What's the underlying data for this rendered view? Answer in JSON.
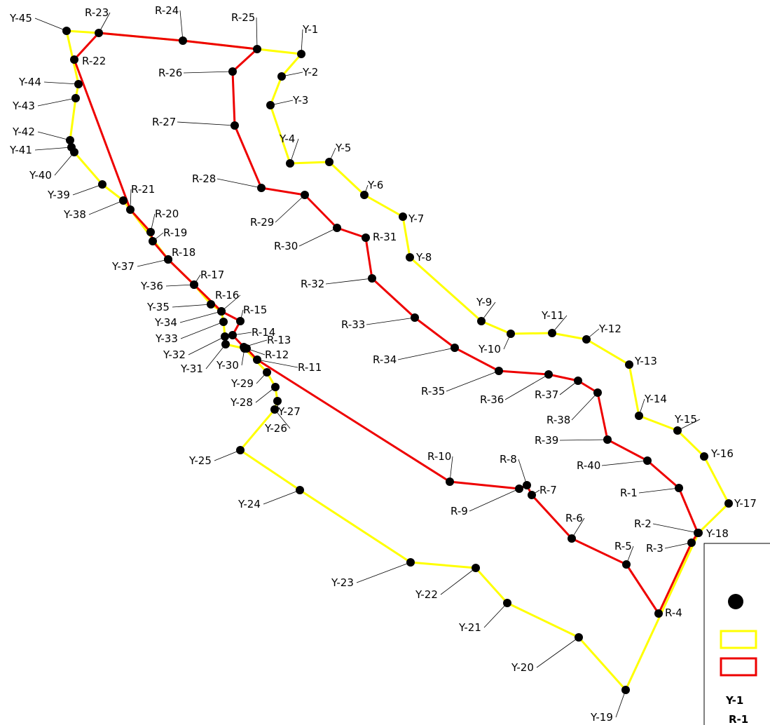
{
  "colors": {
    "yellow_route": "#ffff00",
    "red_route": "#ee0000",
    "point": "#000000",
    "leader": "#000000"
  },
  "yellow_route": {
    "points": [
      "Y-1",
      "Y-2",
      "Y-3",
      "Y-4",
      "Y-5",
      "Y-6",
      "Y-7",
      "Y-8",
      "Y-9",
      "Y-10",
      "Y-11",
      "Y-12",
      "Y-13",
      "Y-14",
      "Y-15",
      "Y-16",
      "Y-17",
      "Y-18",
      "Y-19",
      "Y-20",
      "Y-21",
      "Y-22",
      "Y-23",
      "Y-24",
      "Y-25",
      "Y-26",
      "Y-27",
      "Y-28",
      "Y-29",
      "Y-30",
      "Y-31",
      "Y-32",
      "Y-33",
      "Y-34",
      "Y-35",
      "Y-36",
      "Y-37",
      "Y-38",
      "Y-39",
      "Y-40",
      "Y-41",
      "Y-42",
      "Y-43",
      "Y-44",
      "Y-45"
    ]
  },
  "red_route": {
    "points": [
      "R-1",
      "R-2",
      "R-3",
      "R-4",
      "R-5",
      "R-6",
      "R-7",
      "R-8",
      "R-9",
      "R-10",
      "R-11",
      "R-12",
      "R-13",
      "R-14",
      "R-15",
      "R-16",
      "R-17",
      "R-18",
      "R-19",
      "R-20",
      "R-21",
      "R-22",
      "R-23",
      "R-24",
      "R-25",
      "R-26",
      "R-27",
      "R-28",
      "R-29",
      "R-30",
      "R-31",
      "R-32",
      "R-33",
      "R-34",
      "R-35",
      "R-36",
      "R-37",
      "R-38",
      "R-39",
      "R-40"
    ]
  },
  "legend": {
    "point_symbol": "point-icon",
    "yellow_symbol": "yellow-route-icon",
    "red_symbol": "red-route-icon",
    "y_label": "Y-1",
    "r_label": "R-1"
  }
}
